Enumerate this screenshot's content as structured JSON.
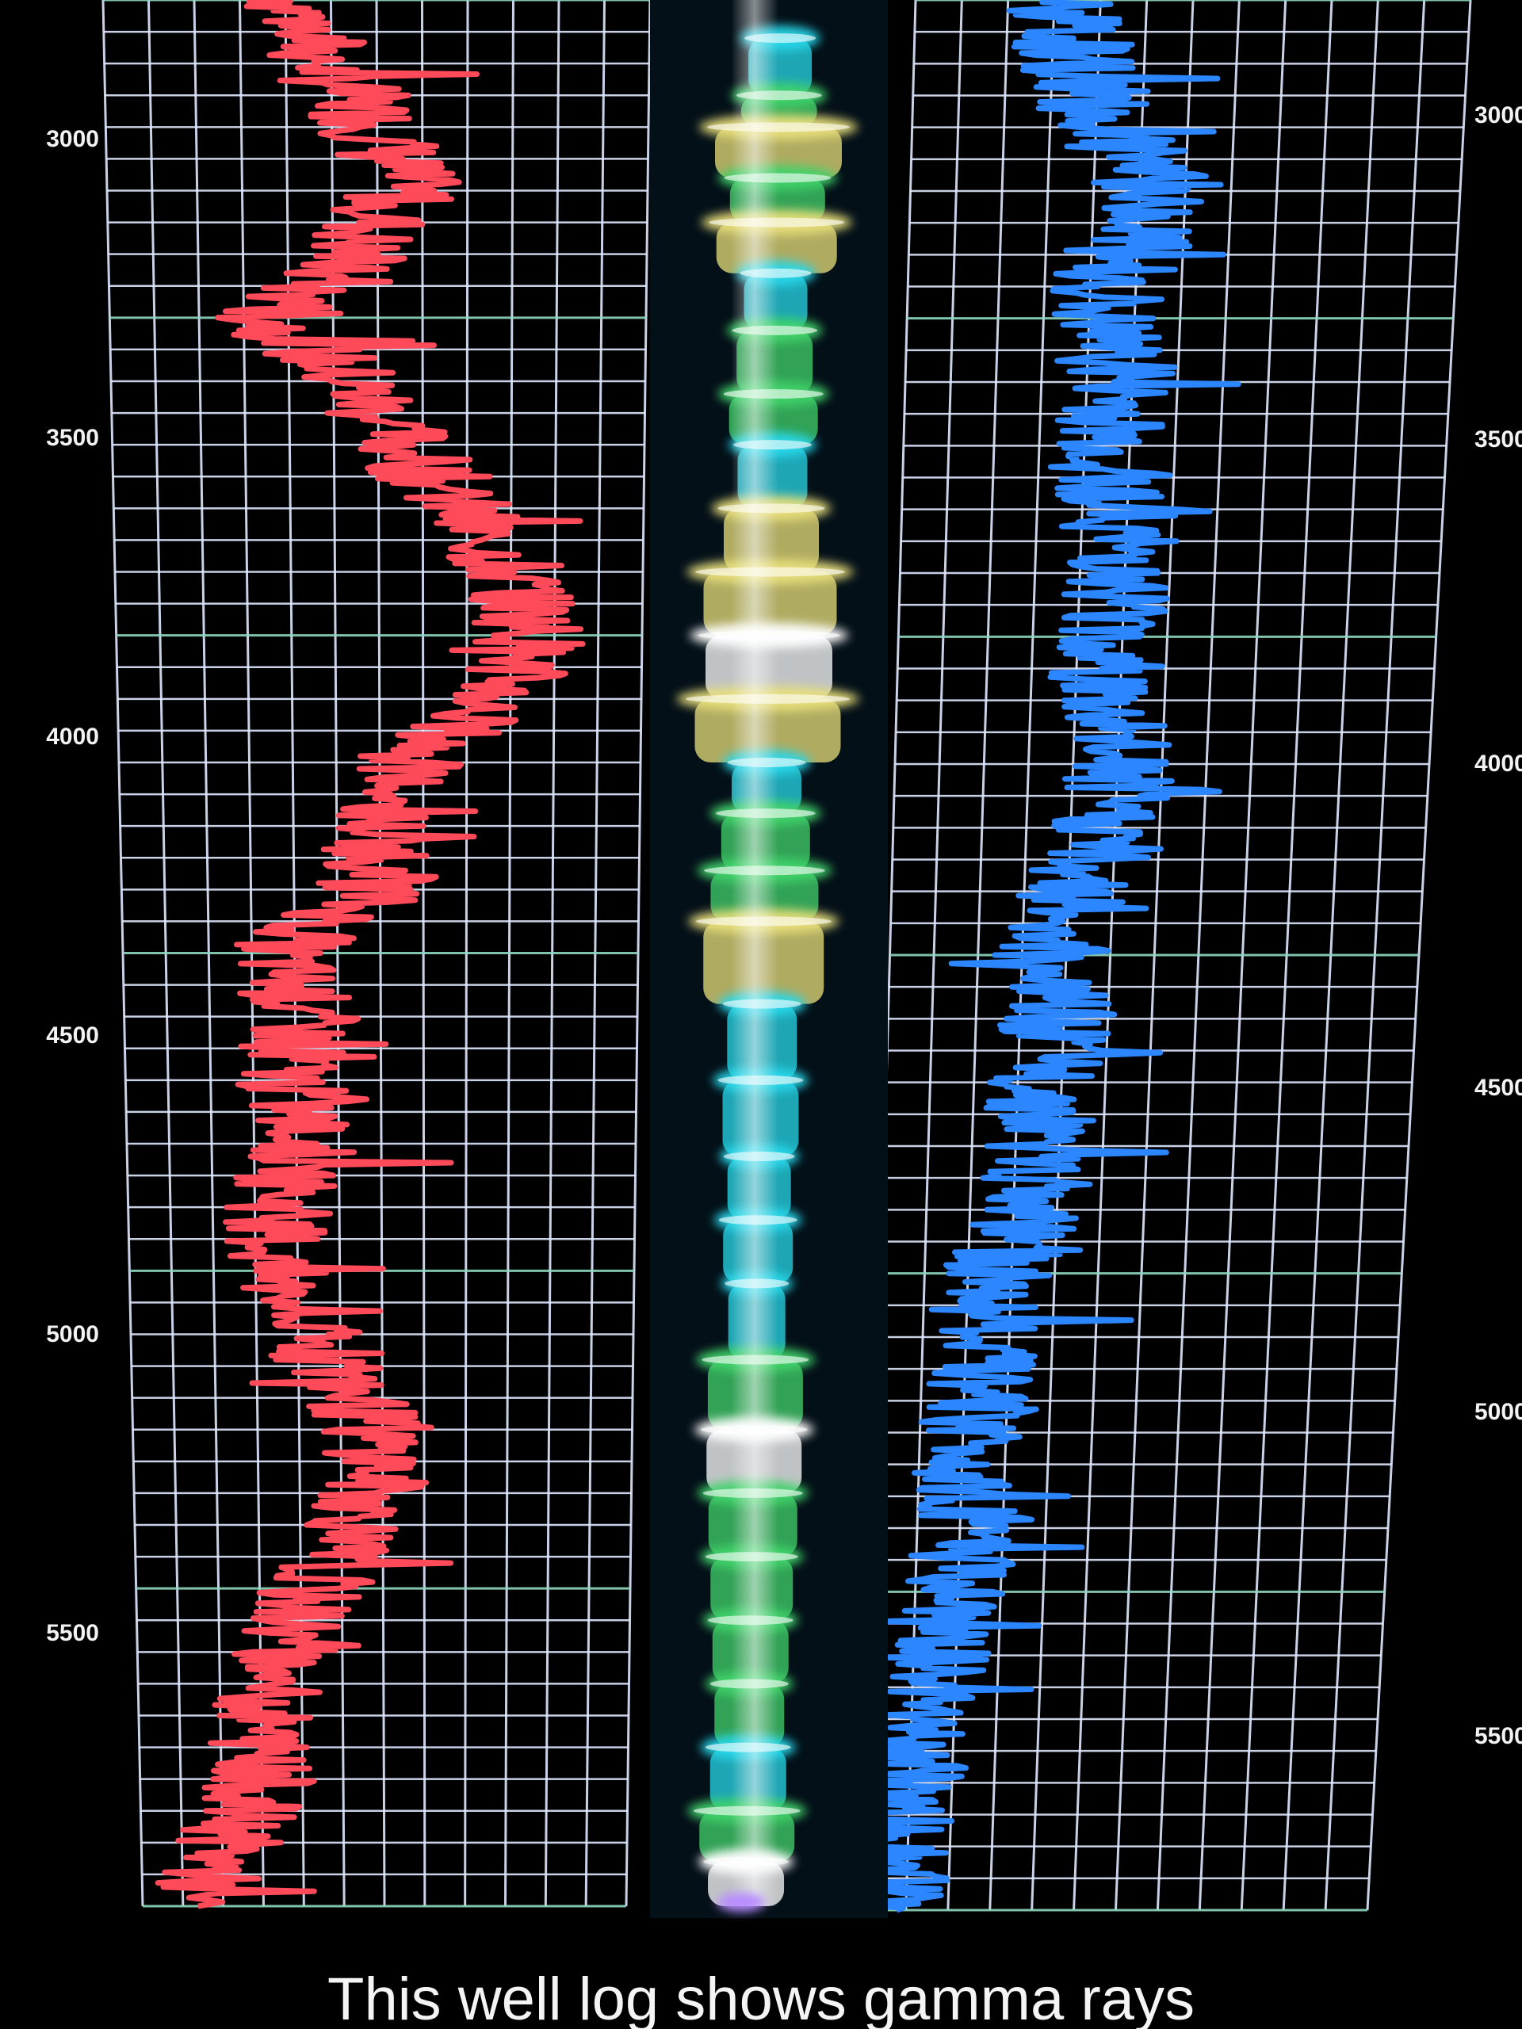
{
  "caption": "This well log shows gamma rays",
  "chart_data": {
    "type": "line",
    "title": "",
    "depth_axis": {
      "reversed": true,
      "range": [
        2800,
        5800
      ]
    },
    "left_track": {
      "depth_labels": [
        "3000",
        "3500",
        "4000",
        "4500",
        "5000",
        "5500"
      ],
      "depth_values": [
        3000,
        3500,
        4000,
        4500,
        5000,
        5500
      ],
      "grid": true
    },
    "right_track": {
      "depth_labels": [
        "3000",
        "3500",
        "4000",
        "4500",
        "5000",
        "5500"
      ],
      "depth_values": [
        3000,
        3500,
        4000,
        4500,
        5000,
        5500
      ],
      "grid": true
    },
    "series": [
      {
        "color": "#ff4a5a",
        "track": "left",
        "depth": [
          2800,
          2900,
          3000,
          3100,
          3200,
          3300,
          3400,
          3500,
          3600,
          3700,
          3800,
          3900,
          4000,
          4100,
          4200,
          4300,
          4400,
          4500,
          4600,
          4700,
          4800,
          4900,
          5000,
          5100,
          5200,
          5300,
          5400,
          5500,
          5600,
          5700,
          5800
        ],
        "values": [
          0.35,
          0.4,
          0.5,
          0.55,
          0.45,
          0.3,
          0.45,
          0.55,
          0.65,
          0.75,
          0.8,
          0.72,
          0.55,
          0.5,
          0.5,
          0.3,
          0.35,
          0.32,
          0.35,
          0.3,
          0.28,
          0.35,
          0.45,
          0.5,
          0.45,
          0.35,
          0.3,
          0.25,
          0.25,
          0.18,
          0.1
        ]
      },
      {
        "color": "#2b86ff",
        "track": "right",
        "depth": [
          2800,
          2900,
          3000,
          3100,
          3200,
          3300,
          3400,
          3500,
          3600,
          3700,
          3800,
          3900,
          4000,
          4100,
          4200,
          4300,
          4400,
          4500,
          4600,
          4700,
          4800,
          4900,
          5000,
          5100,
          5200,
          5300,
          5400,
          5500,
          5600,
          5700,
          5800
        ],
        "values": [
          0.25,
          0.3,
          0.35,
          0.45,
          0.4,
          0.35,
          0.4,
          0.38,
          0.4,
          0.42,
          0.4,
          0.38,
          0.42,
          0.4,
          0.35,
          0.3,
          0.32,
          0.3,
          0.3,
          0.28,
          0.22,
          0.2,
          0.2,
          0.18,
          0.2,
          0.15,
          0.12,
          0.1,
          0.08,
          0.06,
          0.05
        ]
      }
    ],
    "center_column": {
      "colors": {
        "cyan": "#27d8ea",
        "green": "#41d36b",
        "yellow": "#e8df7a",
        "white": "#ffffff"
      },
      "bands": [
        {
          "depth": 2860,
          "width": 0.5,
          "color": "#27d8ea"
        },
        {
          "depth": 2950,
          "width": 0.6,
          "color": "#41d36b"
        },
        {
          "depth": 3000,
          "width": 1.0,
          "color": "#e8df7a"
        },
        {
          "depth": 3080,
          "width": 0.75,
          "color": "#41d36b"
        },
        {
          "depth": 3150,
          "width": 0.95,
          "color": "#e8df7a"
        },
        {
          "depth": 3230,
          "width": 0.5,
          "color": "#27d8ea"
        },
        {
          "depth": 3320,
          "width": 0.6,
          "color": "#41d36b"
        },
        {
          "depth": 3420,
          "width": 0.7,
          "color": "#41d36b"
        },
        {
          "depth": 3500,
          "width": 0.55,
          "color": "#27d8ea"
        },
        {
          "depth": 3600,
          "width": 0.75,
          "color": "#e8df7a"
        },
        {
          "depth": 3700,
          "width": 1.05,
          "color": "#e8df7a"
        },
        {
          "depth": 3800,
          "width": 1.0,
          "color": "#ffffff"
        },
        {
          "depth": 3900,
          "width": 1.15,
          "color": "#e8df7a"
        },
        {
          "depth": 4000,
          "width": 0.55,
          "color": "#27d8ea"
        },
        {
          "depth": 4080,
          "width": 0.7,
          "color": "#41d36b"
        },
        {
          "depth": 4170,
          "width": 0.85,
          "color": "#41d36b"
        },
        {
          "depth": 4250,
          "width": 0.95,
          "color": "#e8df7a"
        },
        {
          "depth": 4380,
          "width": 0.55,
          "color": "#27d8ea"
        },
        {
          "depth": 4500,
          "width": 0.6,
          "color": "#27d8ea"
        },
        {
          "depth": 4620,
          "width": 0.5,
          "color": "#27d8ea"
        },
        {
          "depth": 4720,
          "width": 0.55,
          "color": "#27d8ea"
        },
        {
          "depth": 4820,
          "width": 0.45,
          "color": "#27d8ea"
        },
        {
          "depth": 4940,
          "width": 0.75,
          "color": "#41d36b"
        },
        {
          "depth": 5050,
          "width": 0.75,
          "color": "#ffffff"
        },
        {
          "depth": 5150,
          "width": 0.7,
          "color": "#41d36b"
        },
        {
          "depth": 5250,
          "width": 0.65,
          "color": "#41d36b"
        },
        {
          "depth": 5350,
          "width": 0.6,
          "color": "#41d36b"
        },
        {
          "depth": 5450,
          "width": 0.55,
          "color": "#41d36b"
        },
        {
          "depth": 5550,
          "width": 0.6,
          "color": "#27d8ea"
        },
        {
          "depth": 5650,
          "width": 0.75,
          "color": "#41d36b"
        },
        {
          "depth": 5730,
          "width": 0.6,
          "color": "#ffffff"
        }
      ]
    }
  }
}
